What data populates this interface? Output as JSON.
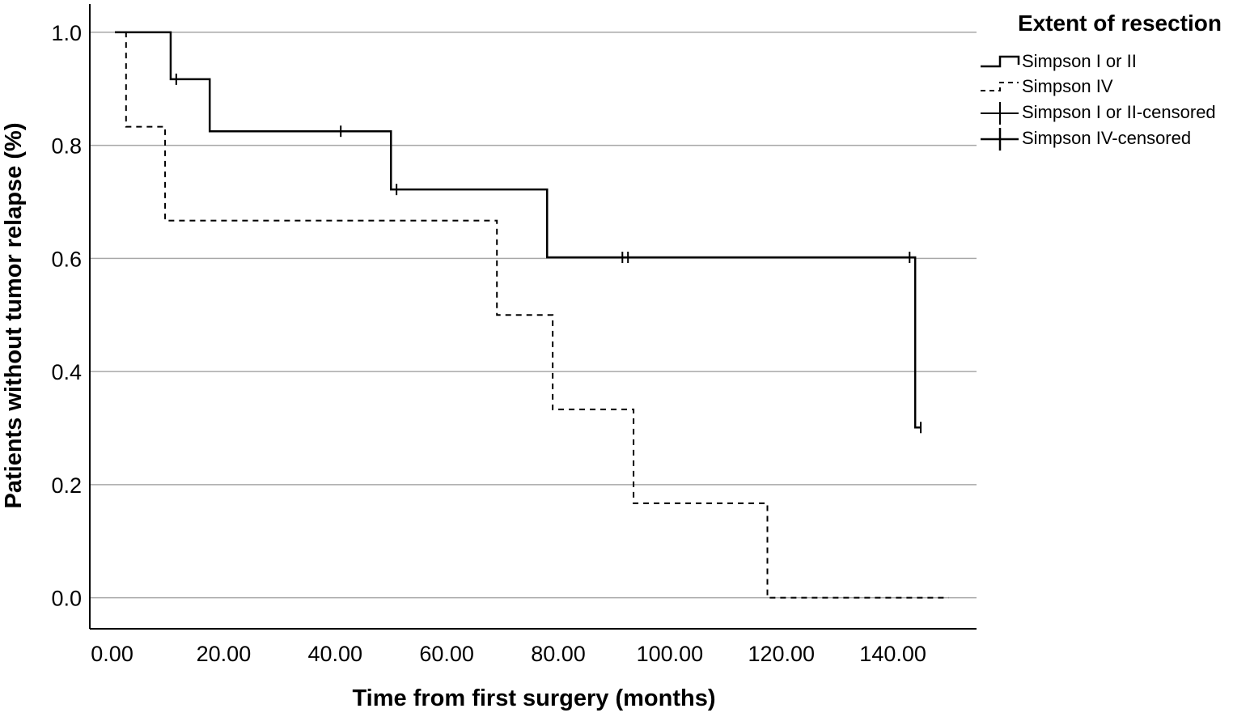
{
  "chart_data": {
    "type": "line",
    "subtype": "kaplan-meier-step",
    "xlabel": "Time from first surgery (months)",
    "ylabel": "Patients without tumor relapse (%)",
    "xlim": [
      -4,
      155
    ],
    "ylim": [
      -0.055,
      1.05
    ],
    "x_ticks": [
      0,
      20,
      40,
      60,
      80,
      100,
      120,
      140
    ],
    "x_tick_labels": [
      "0.00",
      "20.00",
      "40.00",
      "60.00",
      "80.00",
      "100.00",
      "120.00",
      "140.00"
    ],
    "y_ticks": [
      0,
      0.2,
      0.4,
      0.6,
      0.8,
      1.0
    ],
    "y_tick_labels": [
      "0.0",
      "0.2",
      "0.4",
      "0.6",
      "0.8",
      "1.0"
    ],
    "grid": "horizontal",
    "legend": {
      "title": "Extent of resection",
      "position": "top-right outside",
      "entries": [
        "Simpson I or II",
        "Simpson IV",
        "Simpson I or II-censored",
        "Simpson IV-censored"
      ]
    },
    "series": [
      {
        "name": "Simpson I or II",
        "style": "solid",
        "color": "#000000",
        "steps": [
          [
            0.5,
            1.0
          ],
          [
            10.5,
            0.917
          ],
          [
            17.5,
            0.825
          ],
          [
            50,
            0.722
          ],
          [
            78,
            0.602
          ],
          [
            144,
            0.301
          ]
        ],
        "end_x": 145,
        "censored": [
          [
            11.5,
            0.917
          ],
          [
            41,
            0.825
          ],
          [
            51,
            0.722
          ],
          [
            91.5,
            0.602
          ],
          [
            92.5,
            0.602
          ],
          [
            143,
            0.602
          ],
          [
            145,
            0.301
          ]
        ]
      },
      {
        "name": "Simpson IV",
        "style": "dashed",
        "color": "#000000",
        "steps": [
          [
            0.5,
            1.0
          ],
          [
            2.5,
            0.833
          ],
          [
            9.5,
            0.667
          ],
          [
            69,
            0.5
          ],
          [
            79,
            0.333
          ],
          [
            93.5,
            0.167
          ],
          [
            117.5,
            0.0
          ]
        ],
        "end_x": 150,
        "censored": []
      }
    ]
  }
}
